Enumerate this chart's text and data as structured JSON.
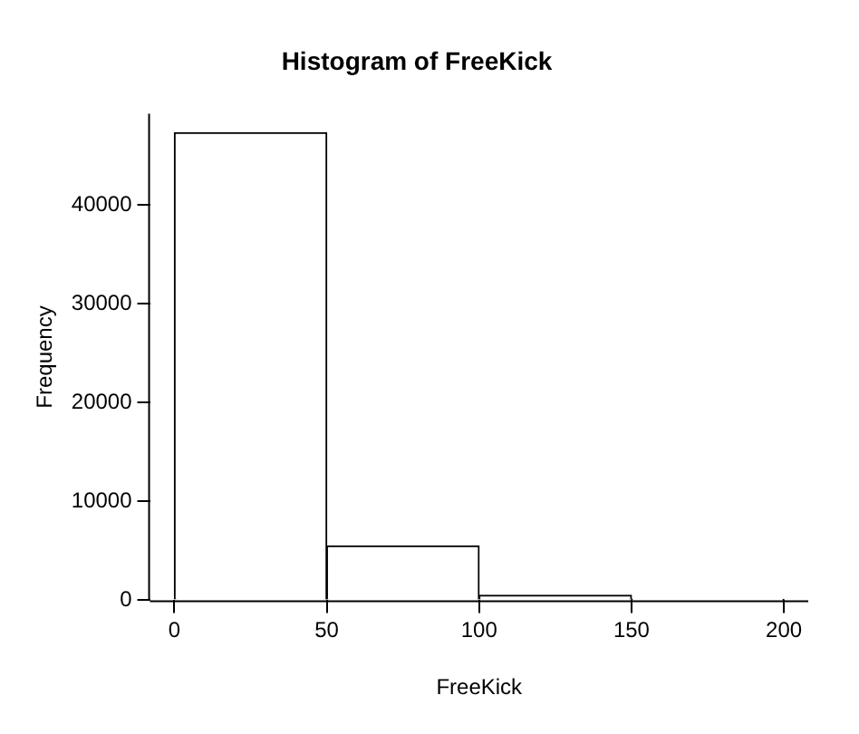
{
  "chart_data": {
    "type": "histogram",
    "title": "Histogram of FreeKick",
    "xlabel": "FreeKick",
    "ylabel": "Frequency",
    "bins": [
      0,
      50,
      100,
      150,
      200
    ],
    "values": [
      47300,
      5500,
      500,
      100
    ],
    "color": "#ffffff",
    "xlim": [
      -8,
      208
    ],
    "xticks": [
      0,
      50,
      100,
      150,
      200
    ],
    "ylim": [
      0,
      49200
    ],
    "yticks": [
      0,
      10000,
      20000,
      30000,
      40000
    ],
    "grid": false,
    "legend": false
  }
}
